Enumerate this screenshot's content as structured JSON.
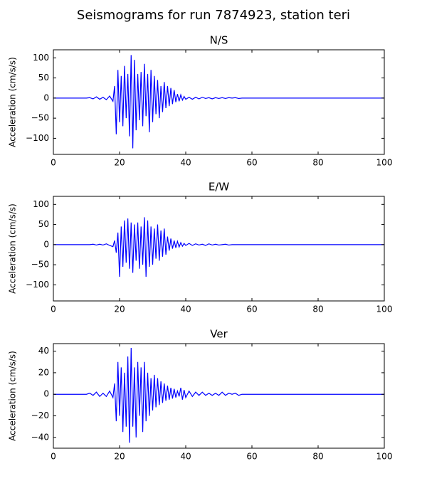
{
  "title": "Seismograms for run 7874923, station teri",
  "chart_data": [
    {
      "type": "line",
      "title": "N/S",
      "y_label": "Acceleration (cm/s/s)",
      "color": "#0000ff",
      "xlim": [
        0,
        100
      ],
      "xticks": [
        0,
        20,
        40,
        60,
        80,
        100
      ],
      "ylim": [
        -140,
        120
      ],
      "yticks": [
        {
          "value": -100,
          "label": "−100"
        },
        {
          "value": -50,
          "label": "−50"
        },
        0,
        50,
        100
      ],
      "x": [
        0,
        5,
        10,
        11,
        12,
        13,
        14,
        15,
        16,
        17,
        18,
        18.5,
        19,
        19.5,
        20,
        20.5,
        21,
        21.5,
        22,
        22.5,
        23,
        23.5,
        24,
        24.5,
        25,
        25.5,
        26,
        26.5,
        27,
        27.5,
        28,
        28.5,
        29,
        29.5,
        30,
        30.5,
        31,
        31.5,
        32,
        32.5,
        33,
        33.5,
        34,
        34.5,
        35,
        35.5,
        36,
        36.5,
        37,
        37.5,
        38,
        38.5,
        39,
        39.5,
        40,
        41,
        42,
        43,
        44,
        45,
        46,
        47,
        48,
        49,
        50,
        51,
        52,
        53,
        54,
        55,
        56,
        57,
        58,
        59,
        60,
        70,
        80,
        90,
        100
      ],
      "values": [
        0,
        0,
        0,
        1,
        -2,
        3,
        -3,
        2,
        -4,
        5,
        -8,
        30,
        -90,
        70,
        -60,
        55,
        -70,
        80,
        -50,
        60,
        -95,
        107,
        -125,
        95,
        -80,
        60,
        -55,
        65,
        -70,
        85,
        -45,
        60,
        -85,
        70,
        -60,
        55,
        -40,
        45,
        -50,
        30,
        -35,
        40,
        -25,
        30,
        -20,
        25,
        -15,
        20,
        -10,
        10,
        -8,
        8,
        -5,
        4,
        -3,
        2,
        -3,
        2,
        -2,
        2,
        -1,
        1,
        -2,
        1,
        -1,
        1,
        -1,
        1,
        0,
        1,
        -1,
        0,
        0,
        0,
        0,
        0,
        0,
        0,
        0
      ]
    },
    {
      "type": "line",
      "title": "E/W",
      "y_label": "Acceleration (cm/s/s)",
      "color": "#0000ff",
      "xlim": [
        0,
        100
      ],
      "xticks": [
        0,
        20,
        40,
        60,
        80,
        100
      ],
      "ylim": [
        -140,
        120
      ],
      "yticks": [
        {
          "value": -100,
          "label": "−100"
        },
        {
          "value": -50,
          "label": "−50"
        },
        0,
        50,
        100
      ],
      "x": [
        0,
        5,
        10,
        11,
        12,
        13,
        14,
        15,
        16,
        17,
        18,
        18.5,
        19,
        19.5,
        20,
        20.5,
        21,
        21.5,
        22,
        22.5,
        23,
        23.5,
        24,
        24.5,
        25,
        25.5,
        26,
        26.5,
        27,
        27.5,
        28,
        28.5,
        29,
        29.5,
        30,
        30.5,
        31,
        31.5,
        32,
        32.5,
        33,
        33.5,
        34,
        34.5,
        35,
        35.5,
        36,
        36.5,
        37,
        37.5,
        38,
        38.5,
        39,
        39.5,
        40,
        41,
        42,
        43,
        44,
        45,
        46,
        47,
        48,
        49,
        50,
        51,
        52,
        53,
        54,
        55,
        56,
        57,
        58,
        59,
        60,
        70,
        80,
        90,
        100
      ],
      "values": [
        0,
        0,
        0,
        0,
        1,
        -1,
        1,
        -1,
        2,
        -2,
        -5,
        10,
        -20,
        30,
        -80,
        45,
        -55,
        60,
        -45,
        65,
        -60,
        55,
        -70,
        50,
        -40,
        55,
        -60,
        45,
        -50,
        68,
        -80,
        60,
        -55,
        45,
        -50,
        40,
        -35,
        50,
        -40,
        35,
        -30,
        40,
        -25,
        20,
        -15,
        15,
        -10,
        10,
        -8,
        8,
        -6,
        5,
        -4,
        3,
        -2,
        3,
        -2,
        2,
        -1,
        1,
        -2,
        2,
        -1,
        1,
        -1,
        0,
        1,
        -1,
        0,
        0,
        0,
        0,
        0,
        0,
        0,
        0,
        0,
        0,
        0
      ]
    },
    {
      "type": "line",
      "title": "Ver",
      "y_label": "Acceleration (cm/s/s)",
      "color": "#0000ff",
      "xlim": [
        0,
        100
      ],
      "xticks": [
        0,
        20,
        40,
        60,
        80,
        100
      ],
      "ylim": [
        -50,
        47
      ],
      "yticks": [
        {
          "value": -40,
          "label": "−40"
        },
        {
          "value": -20,
          "label": "−20"
        },
        0,
        20,
        40
      ],
      "x": [
        0,
        5,
        10,
        11,
        12,
        13,
        14,
        15,
        16,
        17,
        18,
        18.5,
        19,
        19.5,
        20,
        20.5,
        21,
        21.5,
        22,
        22.5,
        23,
        23.5,
        24,
        24.5,
        25,
        25.5,
        26,
        26.5,
        27,
        27.5,
        28,
        28.5,
        29,
        29.5,
        30,
        30.5,
        31,
        31.5,
        32,
        32.5,
        33,
        33.5,
        34,
        34.5,
        35,
        35.5,
        36,
        36.5,
        37,
        37.5,
        38,
        38.5,
        39,
        39.5,
        40,
        41,
        42,
        43,
        44,
        45,
        46,
        47,
        48,
        49,
        50,
        51,
        52,
        53,
        54,
        55,
        56,
        57,
        58,
        59,
        60,
        70,
        80,
        90,
        100
      ],
      "values": [
        0,
        0,
        0,
        1,
        -1,
        2,
        -2,
        1,
        -2,
        3,
        -3,
        10,
        -25,
        30,
        -20,
        25,
        -35,
        20,
        -30,
        35,
        -45,
        43,
        -30,
        25,
        -40,
        30,
        -20,
        25,
        -35,
        30,
        -25,
        20,
        -20,
        15,
        -15,
        18,
        -12,
        15,
        -10,
        12,
        -8,
        10,
        -6,
        8,
        -5,
        6,
        -4,
        5,
        -3,
        3,
        -2,
        6,
        -5,
        4,
        -3,
        3,
        -2,
        2,
        -1,
        2,
        -1,
        1,
        -1,
        1,
        -1,
        2,
        -1,
        1,
        0,
        1,
        -1,
        0,
        0,
        0,
        0,
        0,
        0,
        0,
        0
      ]
    }
  ]
}
